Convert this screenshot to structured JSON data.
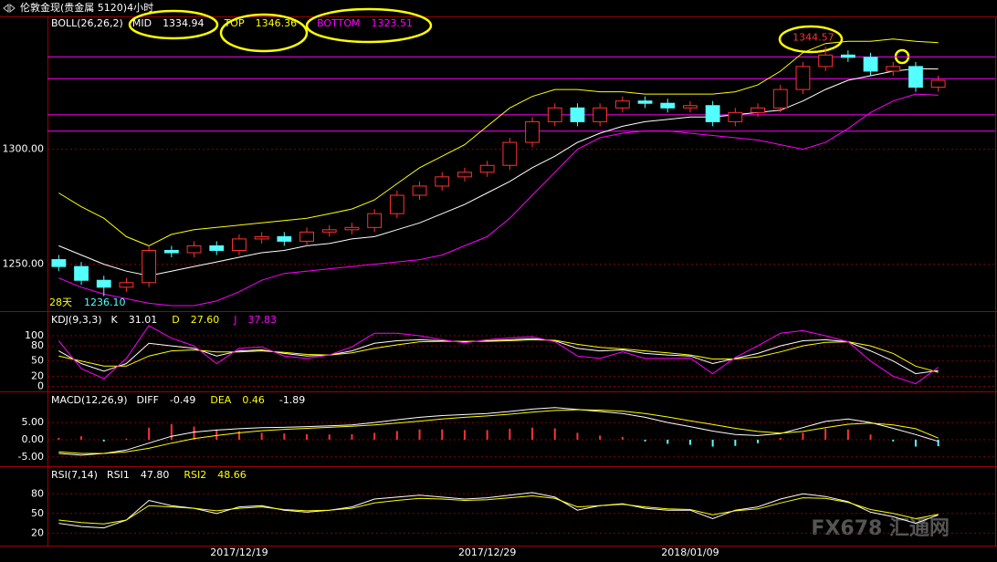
{
  "header": {
    "title": "伦敦金现(贵金属 5120)4小时"
  },
  "watermark": "FX678 汇通网",
  "chart_data": [
    {
      "type": "candlestick",
      "indicator": "BOLL(26,26,2)",
      "readouts": [
        {
          "name": "MID",
          "value": 1334.94,
          "color": "#ffffff"
        },
        {
          "name": "TOP",
          "value": 1346.36,
          "color": "#ffff00"
        },
        {
          "name": "BOTTOM",
          "value": 1323.51,
          "color": "#ff00ff"
        }
      ],
      "annotations": [
        {
          "text": "1344.57",
          "color": "#ff3232"
        },
        {
          "text": "28天",
          "color": "#ffff00"
        },
        {
          "text": "1236.10",
          "color": "#54ffff"
        }
      ],
      "categories": [
        null,
        null,
        null,
        null,
        null,
        null,
        null,
        null,
        "2017/12/19",
        null,
        null,
        null,
        null,
        null,
        null,
        null,
        null,
        null,
        null,
        "2017/12/29",
        null,
        null,
        null,
        null,
        null,
        null,
        null,
        null,
        "2018/01/09",
        null,
        null,
        null,
        null,
        null,
        null,
        null,
        null,
        null,
        null,
        null
      ],
      "open": [
        1252,
        1249,
        1243,
        1240,
        1242,
        1256,
        1255,
        1258,
        1256,
        1261,
        1262,
        1260,
        1264,
        1265,
        1266,
        1272,
        1280,
        1284,
        1288,
        1290,
        1293,
        1303,
        1312,
        1318,
        1312,
        1318,
        1321,
        1320,
        1318,
        1319,
        1312,
        1316,
        1318,
        1326,
        1336,
        1341,
        1340,
        1334,
        1336,
        1327
      ],
      "high": [
        1254,
        1251,
        1245,
        1244,
        1258,
        1258,
        1260,
        1260,
        1263,
        1264,
        1264,
        1266,
        1267,
        1268,
        1274,
        1282,
        1286,
        1290,
        1292,
        1295,
        1305,
        1314,
        1320,
        1320,
        1320,
        1323,
        1323,
        1322,
        1321,
        1321,
        1318,
        1320,
        1328,
        1338,
        1344.57,
        1343,
        1342,
        1338,
        1338,
        1332
      ],
      "low": [
        1247,
        1241,
        1236.1,
        1238,
        1240,
        1253,
        1253,
        1254,
        1254,
        1259,
        1258,
        1258,
        1262,
        1263,
        1264,
        1270,
        1278,
        1282,
        1286,
        1288,
        1291,
        1301,
        1310,
        1310,
        1310,
        1316,
        1318,
        1316,
        1316,
        1310,
        1310,
        1314,
        1316,
        1324,
        1334,
        1338,
        1332,
        1332,
        1325,
        1325
      ],
      "close": [
        1249,
        1243,
        1240,
        1242,
        1256,
        1255,
        1258,
        1256,
        1261,
        1262,
        1260,
        1264,
        1265,
        1266,
        1272,
        1280,
        1284,
        1288,
        1290,
        1293,
        1303,
        1312,
        1318,
        1312,
        1318,
        1321,
        1320,
        1318,
        1319,
        1312,
        1316,
        1318,
        1326,
        1336,
        1341,
        1340,
        1334,
        1336,
        1327,
        1330
      ],
      "up_color": "#ff3232",
      "down_color": "#54ffff",
      "series": [
        {
          "name": "MID",
          "color": "#ffffff",
          "values": [
            1258,
            1254,
            1250,
            1247,
            1245,
            1247,
            1249,
            1251,
            1253,
            1255,
            1256,
            1258,
            1259,
            1261,
            1262,
            1265,
            1268,
            1272,
            1276,
            1281,
            1286,
            1292,
            1297,
            1303,
            1307,
            1310,
            1312,
            1313,
            1314,
            1314,
            1315,
            1316,
            1317,
            1321,
            1326,
            1330,
            1332,
            1334,
            1335,
            1334.94
          ]
        },
        {
          "name": "TOP",
          "color": "#ffff00",
          "values": [
            1281,
            1275,
            1270,
            1262,
            1258,
            1263,
            1265,
            1266,
            1267,
            1268,
            1269,
            1270,
            1272,
            1274,
            1278,
            1285,
            1292,
            1297,
            1302,
            1310,
            1318,
            1323,
            1326,
            1326,
            1325,
            1325,
            1324,
            1324,
            1324,
            1324,
            1325,
            1328,
            1334,
            1342,
            1346,
            1347,
            1347,
            1348,
            1347,
            1346.36
          ]
        },
        {
          "name": "BOTTOM",
          "color": "#ff00ff",
          "values": [
            1244,
            1240,
            1237,
            1235,
            1233,
            1232,
            1232,
            1234,
            1238,
            1243,
            1246,
            1247,
            1248,
            1249,
            1250,
            1251,
            1252,
            1254,
            1258,
            1262,
            1270,
            1280,
            1290,
            1300,
            1305,
            1307,
            1308,
            1308,
            1307,
            1306,
            1305,
            1304,
            1302,
            1300,
            1303,
            1309,
            1316,
            1321,
            1324,
            1323.51
          ]
        }
      ],
      "hlines": [
        1340.2,
        1330.7,
        1315,
        1307.9
      ],
      "hline_color": "#ff00ff",
      "ylim": [
        1230,
        1357
      ],
      "yticks": [
        {
          "value": 1250,
          "label": "1250.00"
        },
        {
          "value": 1300,
          "label": "1300.00"
        }
      ],
      "grid": true
    },
    {
      "type": "line",
      "indicator": "KDJ(9,3,3)",
      "readouts": [
        {
          "name": "K",
          "value": 31.01,
          "color": "#ffffff"
        },
        {
          "name": "D",
          "value": 27.6,
          "label": "27.60",
          "color": "#ffff00"
        },
        {
          "name": "J",
          "value": 37.83,
          "color": "#ff00ff"
        }
      ],
      "series": [
        {
          "name": "K",
          "color": "#ffffff",
          "values": [
            70,
            45,
            30,
            45,
            85,
            80,
            75,
            60,
            70,
            72,
            65,
            60,
            62,
            70,
            85,
            90,
            92,
            90,
            88,
            90,
            92,
            94,
            90,
            75,
            70,
            72,
            65,
            62,
            60,
            45,
            55,
            65,
            80,
            90,
            92,
            88,
            70,
            50,
            25,
            31.01
          ]
        },
        {
          "name": "D",
          "color": "#ffff00",
          "values": [
            60,
            50,
            40,
            40,
            60,
            70,
            72,
            68,
            68,
            70,
            67,
            63,
            62,
            66,
            75,
            82,
            88,
            89,
            89,
            89,
            90,
            92,
            91,
            83,
            77,
            74,
            70,
            66,
            62,
            54,
            54,
            58,
            68,
            80,
            87,
            88,
            80,
            65,
            40,
            27.6
          ]
        },
        {
          "name": "J",
          "color": "#ff00ff",
          "values": [
            90,
            35,
            15,
            55,
            120,
            95,
            80,
            45,
            75,
            78,
            60,
            55,
            62,
            78,
            105,
            105,
            100,
            92,
            86,
            92,
            96,
            98,
            88,
            60,
            55,
            68,
            55,
            55,
            56,
            25,
            57,
            80,
            105,
            110,
            100,
            88,
            50,
            20,
            5,
            37.83
          ]
        }
      ],
      "ylim": [
        -10,
        145
      ],
      "yticks": [
        0,
        20,
        50,
        80,
        100
      ],
      "grid": true
    },
    {
      "type": "bar",
      "indicator": "MACD(12,26,9)",
      "readouts": [
        {
          "name": "DIFF",
          "value": -0.49,
          "color": "#ffffff"
        },
        {
          "name": "DEA",
          "value": 0.46,
          "color": "#ffff00"
        },
        {
          "value": -1.89,
          "color": "#ffffff"
        }
      ],
      "histogram": {
        "up_color": "#ff3232",
        "down_color": "#54ffff",
        "values": [
          0.5,
          1,
          -0.5,
          0.3,
          3.5,
          4.5,
          3.8,
          3,
          2.5,
          2,
          1.8,
          1.6,
          1.5,
          1.6,
          2,
          2.5,
          3,
          3,
          2.8,
          2.8,
          3.2,
          3.5,
          3.3,
          2,
          1.2,
          0.8,
          -0.5,
          -1.2,
          -1.5,
          -2,
          -1.8,
          -1,
          0.5,
          2,
          3.2,
          3,
          1.5,
          -0.5,
          -2,
          -1.89
        ]
      },
      "series": [
        {
          "name": "DIFF",
          "color": "#ffffff",
          "values": [
            -4,
            -4.5,
            -4,
            -3,
            -1,
            1,
            2.2,
            2.8,
            3.2,
            3.5,
            3.6,
            3.8,
            4,
            4.3,
            5,
            5.8,
            6.5,
            7,
            7.3,
            7.6,
            8.2,
            8.9,
            9.3,
            8.8,
            8.2,
            7.6,
            6.5,
            5,
            3.8,
            2.5,
            1.5,
            1.2,
            1.8,
            3.5,
            5.3,
            6,
            5,
            3.3,
            1.5,
            -0.49
          ]
        },
        {
          "name": "DEA",
          "color": "#ffff00",
          "values": [
            -3.5,
            -4,
            -4,
            -3.5,
            -2.5,
            -1,
            0.3,
            1.2,
            2,
            2.6,
            3,
            3.3,
            3.6,
            3.9,
            4.3,
            4.8,
            5.4,
            6,
            6.5,
            6.9,
            7.4,
            8,
            8.5,
            8.7,
            8.6,
            8.3,
            7.6,
            6.6,
            5.5,
            4.4,
            3.3,
            2.4,
            1.9,
            2.4,
            3.5,
            4.5,
            4.8,
            4.3,
            3.2,
            0.46
          ]
        }
      ],
      "ylim": [
        -7.7,
        13.5
      ],
      "yticks": [
        {
          "value": 5,
          "label": "5.00"
        },
        {
          "value": 0,
          "label": "0.00"
        },
        {
          "value": -5,
          "label": "-5.00"
        }
      ],
      "grid": true
    },
    {
      "type": "line",
      "indicator": "RSI(7,14)",
      "readouts": [
        {
          "name": "RSI1",
          "value": 47.8,
          "label": "47.80",
          "color": "#ffffff"
        },
        {
          "name": "RSI2",
          "value": 48.66,
          "color": "#ffff00"
        }
      ],
      "series": [
        {
          "name": "RSI1",
          "color": "#ffffff",
          "values": [
            35,
            30,
            28,
            40,
            70,
            62,
            58,
            50,
            60,
            62,
            55,
            52,
            55,
            60,
            72,
            75,
            78,
            75,
            72,
            74,
            78,
            82,
            75,
            55,
            62,
            65,
            58,
            55,
            55,
            42,
            55,
            60,
            72,
            80,
            76,
            68,
            52,
            45,
            35,
            47.8
          ]
        },
        {
          "name": "RSI2",
          "color": "#ffff00",
          "values": [
            40,
            36,
            34,
            40,
            62,
            60,
            58,
            54,
            58,
            60,
            56,
            54,
            55,
            58,
            66,
            70,
            73,
            72,
            70,
            71,
            74,
            77,
            73,
            60,
            62,
            64,
            60,
            57,
            56,
            48,
            54,
            57,
            66,
            74,
            73,
            67,
            56,
            50,
            42,
            48.66
          ]
        }
      ],
      "ylim": [
        2.3,
        119.5
      ],
      "yticks": [
        20,
        50,
        80
      ],
      "grid": true
    }
  ]
}
